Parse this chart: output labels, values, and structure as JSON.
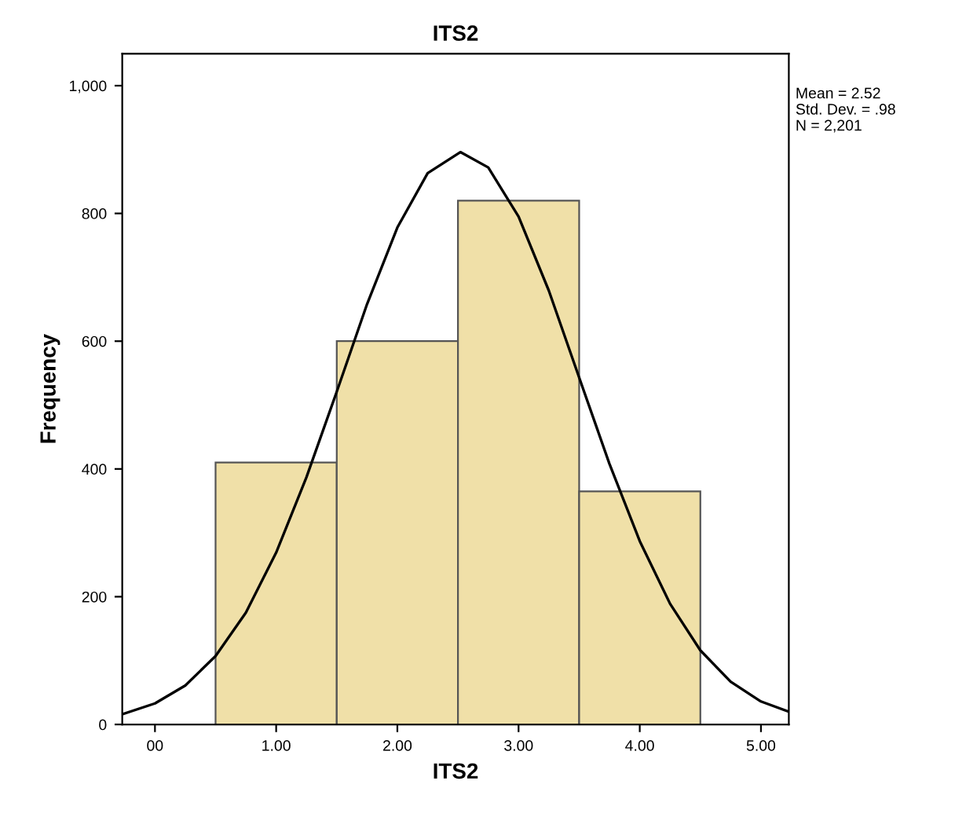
{
  "chart_data": {
    "type": "histogram",
    "title": "ITS2",
    "xlabel": "ITS2",
    "ylabel": "Frequency",
    "bins": [
      0.5,
      1.5,
      2.5,
      3.5,
      4.5
    ],
    "values": [
      410,
      600,
      820,
      365
    ],
    "color": "#f0e0a8",
    "series": [
      {
        "type": "line",
        "color": "#000000",
        "x": [
          -0.27,
          0,
          0.25,
          0.5,
          0.75,
          1,
          1.25,
          1.5,
          1.75,
          2,
          2.25,
          2.52,
          2.75,
          3,
          3.25,
          3.5,
          3.75,
          4,
          4.25,
          4.5,
          4.75,
          5,
          5.23
        ],
        "values": [
          16,
          33,
          61,
          107,
          175,
          269,
          387,
          521,
          658,
          778,
          863,
          896,
          872,
          795,
          679,
          543,
          408,
          287,
          189,
          116,
          67,
          36,
          20
        ]
      }
    ],
    "xlim": [
      -0.27,
      5.23
    ],
    "xticks": [
      {
        "value": 0,
        "label": "00"
      },
      {
        "value": 1,
        "label": "1.00"
      },
      {
        "value": 2,
        "label": "2.00"
      },
      {
        "value": 3,
        "label": "3.00"
      },
      {
        "value": 4,
        "label": "4.00"
      },
      {
        "value": 5,
        "label": "5.00"
      }
    ],
    "ylim": [
      0,
      1050
    ],
    "yticks": [
      0,
      200,
      400,
      600,
      800,
      {
        "value": 1000,
        "label": "1,000"
      }
    ],
    "grid": false,
    "legend": false,
    "marker": "none",
    "line_style": "solid",
    "annotations": [
      "Mean = 2.52",
      "Std. Dev. = .98",
      "N = 2,201"
    ]
  }
}
